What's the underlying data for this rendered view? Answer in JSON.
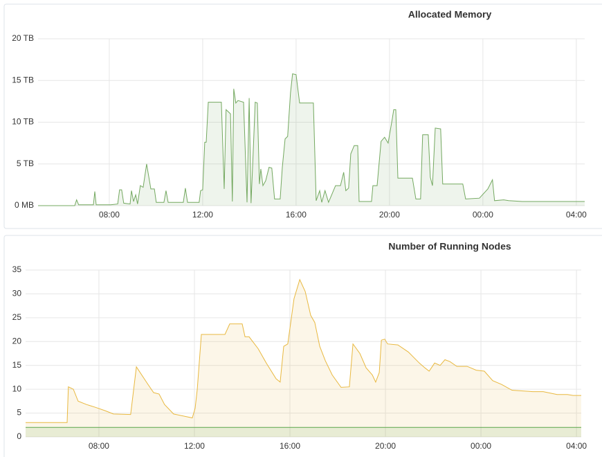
{
  "chart_data": [
    {
      "type": "line",
      "title": "Allocated Memory",
      "xlim": [
        4.95,
        28.36
      ],
      "xticks": [
        {
          "value": 8,
          "label": "08:00"
        },
        {
          "value": 12,
          "label": "12:00"
        },
        {
          "value": 16,
          "label": "16:00"
        },
        {
          "value": 20,
          "label": "20:00"
        },
        {
          "value": 24,
          "label": "00:00"
        },
        {
          "value": 28,
          "label": "04:00"
        }
      ],
      "ylim": [
        0,
        20
      ],
      "yticks": [
        {
          "value": 0,
          "label": "0 MB"
        },
        {
          "value": 5,
          "label": "5 TB"
        },
        {
          "value": 10,
          "label": "10 TB"
        },
        {
          "value": 15,
          "label": "15 TB"
        },
        {
          "value": 20,
          "label": "20 TB"
        }
      ],
      "grid": true,
      "series": [
        {
          "color": "#73a85f",
          "x": [
            4.95,
            6.52,
            6.6,
            6.69,
            7.32,
            7.38,
            7.44,
            8.06,
            8.36,
            8.44,
            8.53,
            8.62,
            8.89,
            8.95,
            9.04,
            9.13,
            9.21,
            9.33,
            9.45,
            9.6,
            9.78,
            9.93,
            10.01,
            10.34,
            10.43,
            10.52,
            11.17,
            11.26,
            11.35,
            11.85,
            11.91,
            12.0,
            12.09,
            12.15,
            12.24,
            12.8,
            12.92,
            13.0,
            13.19,
            13.27,
            13.33,
            13.42,
            13.51,
            13.75,
            13.9,
            13.99,
            14.07,
            14.16,
            14.25,
            14.34,
            14.43,
            14.49,
            14.58,
            14.7,
            14.84,
            14.96,
            15.08,
            15.32,
            15.41,
            15.53,
            15.64,
            15.76,
            15.85,
            16.0,
            16.15,
            16.74,
            16.86,
            17.01,
            17.1,
            17.24,
            17.39,
            17.54,
            17.69,
            17.9,
            18.04,
            18.13,
            18.25,
            18.34,
            18.49,
            18.64,
            18.7,
            19.23,
            19.29,
            19.47,
            19.64,
            19.79,
            19.94,
            20.12,
            20.18,
            20.27,
            20.36,
            20.98,
            21.13,
            21.33,
            21.42,
            21.66,
            21.75,
            21.84,
            21.96,
            22.19,
            22.28,
            23.14,
            23.26,
            23.85,
            24.21,
            24.41,
            24.5,
            24.89,
            25.1,
            25.69,
            28.36
          ],
          "values": [
            0,
            0,
            0.7,
            0.1,
            0.1,
            1.7,
            0.1,
            0.1,
            0.2,
            1.9,
            1.9,
            0.3,
            0.2,
            1.8,
            0.5,
            1.3,
            0.2,
            2.4,
            2.2,
            5.0,
            2.0,
            2.0,
            0.4,
            0.4,
            1.8,
            0.4,
            0.4,
            2.1,
            0.4,
            0.4,
            1.8,
            1.9,
            7.6,
            7.6,
            12.4,
            12.4,
            2.0,
            11.5,
            11.0,
            0.5,
            14.0,
            12.3,
            12.6,
            12.4,
            0.4,
            12.9,
            0.3,
            6.2,
            12.4,
            12.3,
            2.6,
            4.4,
            2.4,
            3.0,
            4.6,
            4.5,
            0.8,
            0.8,
            4.6,
            8.0,
            8.3,
            13.5,
            15.8,
            15.7,
            12.3,
            12.3,
            0.6,
            1.8,
            0.4,
            1.8,
            0.4,
            1.4,
            2.4,
            2.4,
            4.0,
            1.8,
            2.1,
            6.2,
            7.2,
            7.2,
            0.5,
            0.5,
            2.4,
            2.4,
            7.7,
            8.2,
            7.5,
            10.4,
            11.5,
            11.5,
            3.3,
            3.3,
            0.8,
            0.8,
            8.5,
            8.5,
            3.4,
            2.4,
            9.3,
            9.2,
            2.6,
            2.6,
            0.8,
            0.9,
            2.0,
            3.1,
            0.6,
            0.7,
            0.6,
            0.5,
            0.5
          ]
        }
      ]
    },
    {
      "type": "line",
      "title": "Number of Running Nodes",
      "xlim": [
        4.93,
        28.2
      ],
      "xticks": [
        {
          "value": 8,
          "label": "08:00"
        },
        {
          "value": 12,
          "label": "12:00"
        },
        {
          "value": 16,
          "label": "16:00"
        },
        {
          "value": 20,
          "label": "20:00"
        },
        {
          "value": 24,
          "label": "00:00"
        },
        {
          "value": 28,
          "label": "04:00"
        }
      ],
      "ylim": [
        0,
        35
      ],
      "yticks": [
        0,
        5,
        10,
        15,
        20,
        25,
        30,
        35
      ],
      "grid": true,
      "series": [
        {
          "color": "#e8b83f",
          "x": [
            4.93,
            6.67,
            6.72,
            6.93,
            7.13,
            7.48,
            7.86,
            8.26,
            8.61,
            9.33,
            9.57,
            10.03,
            10.29,
            10.52,
            10.75,
            11.13,
            11.91,
            12.03,
            12.12,
            12.29,
            13.28,
            13.48,
            14.0,
            14.12,
            14.29,
            14.67,
            15.01,
            15.42,
            15.59,
            15.74,
            15.91,
            16.17,
            16.41,
            16.64,
            16.87,
            17.04,
            17.25,
            17.48,
            17.77,
            18.14,
            18.49,
            18.64,
            18.93,
            19.19,
            19.45,
            19.59,
            19.74,
            19.83,
            19.97,
            20.09,
            20.52,
            20.96,
            21.42,
            21.65,
            21.83,
            22.06,
            22.29,
            22.49,
            22.7,
            22.99,
            23.42,
            23.8,
            24.14,
            24.49,
            24.87,
            25.3,
            26.17,
            26.61,
            27.19,
            27.62,
            27.86,
            28.2
          ],
          "values": [
            3.0,
            3.0,
            10.5,
            10.0,
            7.5,
            6.8,
            6.2,
            5.5,
            4.8,
            4.7,
            14.7,
            11.2,
            9.3,
            9.0,
            6.8,
            4.8,
            4.0,
            6.0,
            10,
            21.5,
            21.5,
            23.7,
            23.7,
            21.0,
            21.0,
            18.5,
            15.5,
            12.2,
            11.5,
            19.0,
            19.5,
            29,
            33.0,
            30.5,
            25.5,
            24,
            19.0,
            16.0,
            13.0,
            10.4,
            10.5,
            19.5,
            17.5,
            14.5,
            13.0,
            11.5,
            13.5,
            20.3,
            20.5,
            19.5,
            19.3,
            17.8,
            15.5,
            14.5,
            13.8,
            15.5,
            15.0,
            16.2,
            15.8,
            14.8,
            14.8,
            14.0,
            13.8,
            11.8,
            11.0,
            9.8,
            9.5,
            9.5,
            8.9,
            8.9,
            8.7,
            8.7
          ]
        },
        {
          "color": "#5aa64b",
          "x": [
            4.93,
            28.2
          ],
          "values": [
            2,
            2
          ]
        }
      ]
    }
  ]
}
